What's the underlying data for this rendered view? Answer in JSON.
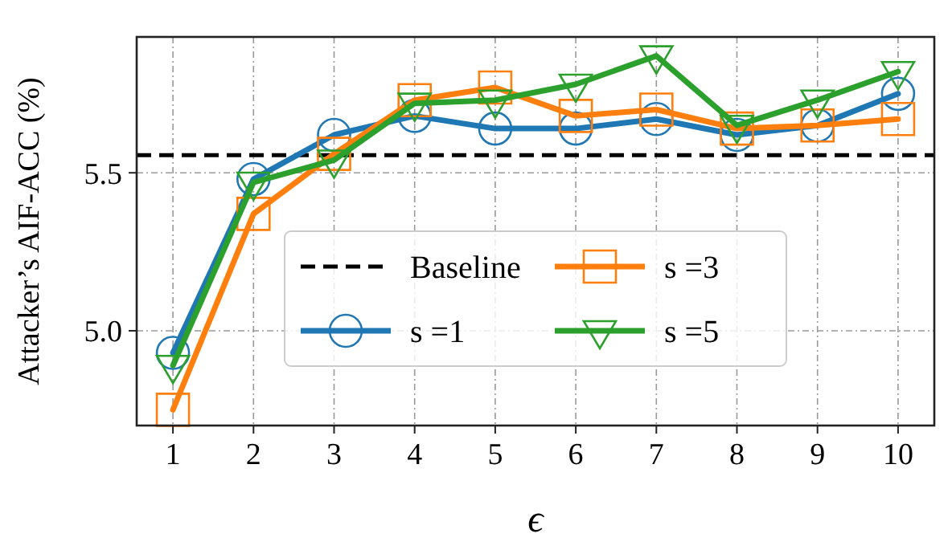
{
  "chart_data": {
    "type": "line",
    "xlabel": "ϵ",
    "ylabel": "Attacker’s AIF-ACC (%)",
    "x": [
      1,
      2,
      3,
      4,
      5,
      6,
      7,
      8,
      9,
      10
    ],
    "xlim": [
      0.55,
      10.45
    ],
    "xticks": [
      1,
      2,
      3,
      4,
      5,
      6,
      7,
      8,
      9,
      10
    ],
    "ylim": [
      4.7,
      5.93
    ],
    "yticks": [
      {
        "value": 5,
        "label": "5.0"
      },
      {
        "value": 5.5,
        "label": "5.5"
      }
    ],
    "grid": true,
    "legend": "bottom",
    "line_style": "solid",
    "ref_lines": [
      {
        "axis": "y",
        "value": 5.556,
        "label": "Baseline",
        "color": "#000000",
        "line_style": "dashed"
      }
    ],
    "series": [
      {
        "name": "s =1",
        "color": "#1f77b4",
        "marker": "circle",
        "values": [
          4.93,
          5.48,
          5.62,
          5.68,
          5.64,
          5.64,
          5.67,
          5.62,
          5.65,
          5.75
        ]
      },
      {
        "name": "s =3",
        "color": "#ff7f0e",
        "marker": "square",
        "values": [
          4.75,
          5.37,
          5.56,
          5.73,
          5.77,
          5.68,
          5.7,
          5.64,
          5.65,
          5.67
        ]
      },
      {
        "name": "s =5",
        "color": "#2ca02c",
        "marker": "triangle",
        "values": [
          4.89,
          5.47,
          5.54,
          5.72,
          5.73,
          5.78,
          5.87,
          5.65,
          5.73,
          5.82
        ]
      }
    ]
  }
}
